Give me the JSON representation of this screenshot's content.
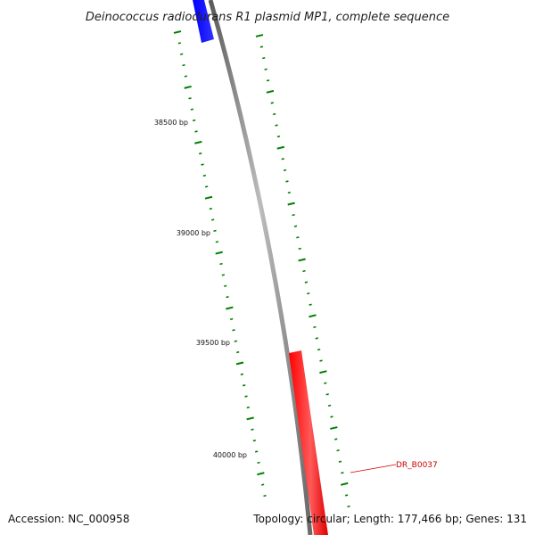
{
  "title": "Deinococcus radiodurans R1 plasmid MP1, complete sequence",
  "footer": {
    "accession": "Accession: NC_000958",
    "summary": "Topology: circular; Length: 177,466 bp; Genes: 131"
  },
  "ticks": [
    {
      "label": "38500 bp"
    },
    {
      "label": "39000 bp"
    },
    {
      "label": "39500 bp"
    },
    {
      "label": "40000 bp"
    }
  ],
  "genes": [
    {
      "id": "forward-gene",
      "strand": "forward",
      "color": "#0000ff",
      "label": ""
    },
    {
      "id": "reverse-gene",
      "strand": "reverse",
      "color": "#ff0000",
      "label": "DR_B0037"
    }
  ],
  "colors": {
    "backbone": "#808080",
    "ticks": "#008000",
    "forward": "#0000ff",
    "reverse": "#ff0000"
  }
}
